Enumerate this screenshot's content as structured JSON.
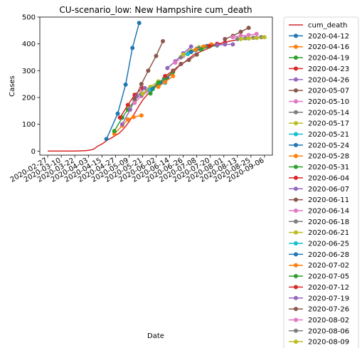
{
  "chart_data": {
    "type": "line",
    "title": "CU-scenario_low: New Hampshire cum_death",
    "xlabel": "Date",
    "ylabel": "Cases",
    "ylim": [
      -15,
      500
    ],
    "xlim": [
      "2020-02-20",
      "2020-09-13"
    ],
    "yticks": [
      0,
      100,
      200,
      300,
      400,
      500
    ],
    "xticks": [
      "2020-02-27",
      "2020-03-10",
      "2020-03-22",
      "2020-04-03",
      "2020-04-15",
      "2020-04-27",
      "2020-05-09",
      "2020-05-21",
      "2020-06-02",
      "2020-06-14",
      "2020-06-26",
      "2020-07-08",
      "2020-07-20",
      "2020-08-01",
      "2020-08-13",
      "2020-08-25",
      "2020-09-06"
    ],
    "grid": false,
    "legend_position": "outside-right",
    "observed": {
      "name": "cum_death",
      "color": "#d62728",
      "x": [
        "2020-02-27",
        "2020-03-10",
        "2020-03-22",
        "2020-03-27",
        "2020-04-01",
        "2020-04-05",
        "2020-04-08",
        "2020-04-11",
        "2020-04-14",
        "2020-04-17",
        "2020-04-20",
        "2020-04-23",
        "2020-04-26",
        "2020-04-30",
        "2020-05-03",
        "2020-05-06",
        "2020-05-09",
        "2020-05-12",
        "2020-05-15",
        "2020-05-18",
        "2020-05-21",
        "2020-05-24",
        "2020-05-27",
        "2020-05-30",
        "2020-06-03",
        "2020-06-06",
        "2020-06-10",
        "2020-06-14",
        "2020-06-18",
        "2020-06-22",
        "2020-06-26",
        "2020-07-01",
        "2020-07-06",
        "2020-07-12",
        "2020-07-18",
        "2020-07-24",
        "2020-07-30",
        "2020-08-06",
        "2020-08-13",
        "2020-08-20",
        "2020-08-27",
        "2020-09-04"
      ],
      "y": [
        0,
        0,
        0,
        1,
        2,
        4,
        8,
        18,
        24,
        32,
        42,
        48,
        56,
        66,
        78,
        92,
        110,
        128,
        148,
        170,
        190,
        205,
        218,
        232,
        252,
        262,
        272,
        282,
        298,
        316,
        328,
        345,
        362,
        372,
        383,
        395,
        402,
        410,
        415,
        418,
        422,
        426
      ]
    },
    "series": [
      {
        "name": "2020-04-12",
        "color": "#1f77b4",
        "x": [
          "2020-04-19",
          "2020-04-29",
          "2020-05-06",
          "2020-05-12",
          "2020-05-18"
        ],
        "y": [
          45,
          140,
          248,
          385,
          478
        ]
      },
      {
        "name": "2020-04-16",
        "color": "#ff7f0e",
        "x": [
          "2020-04-26",
          "2020-05-03",
          "2020-05-08",
          "2020-05-13",
          "2020-05-20"
        ],
        "y": [
          65,
          95,
          118,
          127,
          133
        ]
      },
      {
        "name": "2020-04-19",
        "color": "#2ca02c",
        "x": [
          "2020-04-26",
          "2020-05-03",
          "2020-05-08",
          "2020-05-14"
        ],
        "y": [
          75,
          125,
          155,
          190
        ]
      },
      {
        "name": "2020-04-23",
        "color": "#d62728",
        "x": [
          "2020-05-01",
          "2020-05-08",
          "2020-05-14",
          "2020-05-21"
        ],
        "y": [
          125,
          172,
          210,
          235
        ]
      },
      {
        "name": "2020-04-26",
        "color": "#9467bd",
        "x": [
          "2020-05-03",
          "2020-05-10",
          "2020-05-16",
          "2020-05-23"
        ],
        "y": [
          100,
          155,
          205,
          235
        ]
      },
      {
        "name": "2020-05-07",
        "color": "#8c564b",
        "x": [
          "2020-05-14",
          "2020-05-20",
          "2020-05-26",
          "2020-06-02",
          "2020-06-08"
        ],
        "y": [
          195,
          250,
          300,
          355,
          410
        ]
      },
      {
        "name": "2020-05-10",
        "color": "#e377c2",
        "x": [
          "2020-05-14",
          "2020-05-20",
          "2020-05-27"
        ],
        "y": [
          180,
          205,
          225
        ]
      },
      {
        "name": "2020-05-14",
        "color": "#7f7f7f",
        "x": [
          "2020-05-20",
          "2020-05-27",
          "2020-06-03",
          "2020-06-09"
        ],
        "y": [
          210,
          232,
          250,
          270
        ]
      },
      {
        "name": "2020-05-17",
        "color": "#bcbd22",
        "x": [
          "2020-05-21",
          "2020-05-28",
          "2020-06-04"
        ],
        "y": [
          215,
          240,
          260
        ]
      },
      {
        "name": "2020-05-21",
        "color": "#17becf",
        "x": [
          "2020-05-28",
          "2020-06-04",
          "2020-06-10"
        ],
        "y": [
          230,
          245,
          255
        ]
      },
      {
        "name": "2020-05-24",
        "color": "#1f77b4",
        "x": [
          "2020-05-30",
          "2020-06-06",
          "2020-06-12"
        ],
        "y": [
          232,
          255,
          272
        ]
      },
      {
        "name": "2020-05-28",
        "color": "#ff7f0e",
        "x": [
          "2020-06-04",
          "2020-06-10",
          "2020-06-17"
        ],
        "y": [
          240,
          258,
          280
        ]
      },
      {
        "name": "2020-05-31",
        "color": "#2ca02c",
        "x": [
          "2020-05-28",
          "2020-06-04",
          "2020-06-10",
          "2020-06-17"
        ],
        "y": [
          215,
          255,
          272,
          295
        ]
      },
      {
        "name": "2020-06-04",
        "color": "#d62728",
        "x": [
          "2020-06-10",
          "2020-06-17",
          "2020-06-24"
        ],
        "y": [
          280,
          300,
          325
        ]
      },
      {
        "name": "2020-06-07",
        "color": "#9467bd",
        "x": [
          "2020-06-12",
          "2020-06-19",
          "2020-06-26",
          "2020-07-03"
        ],
        "y": [
          310,
          335,
          365,
          390
        ]
      },
      {
        "name": "2020-06-11",
        "color": "#8c564b",
        "x": [
          "2020-06-17",
          "2020-06-24",
          "2020-07-01",
          "2020-07-08"
        ],
        "y": [
          300,
          325,
          340,
          360
        ]
      },
      {
        "name": "2020-06-14",
        "color": "#e377c2",
        "x": [
          "2020-06-19",
          "2020-06-26",
          "2020-07-02"
        ],
        "y": [
          330,
          355,
          372
        ]
      },
      {
        "name": "2020-06-18",
        "color": "#7f7f7f",
        "x": [
          "2020-06-24",
          "2020-07-01",
          "2020-07-08"
        ],
        "y": [
          350,
          368,
          382
        ]
      },
      {
        "name": "2020-06-21",
        "color": "#bcbd22",
        "x": [
          "2020-06-26",
          "2020-07-03",
          "2020-07-10"
        ],
        "y": [
          360,
          375,
          388
        ]
      },
      {
        "name": "2020-06-25",
        "color": "#17becf",
        "x": [
          "2020-06-30",
          "2020-07-07",
          "2020-07-14"
        ],
        "y": [
          362,
          376,
          390
        ]
      },
      {
        "name": "2020-06-28",
        "color": "#1f77b4",
        "x": [
          "2020-07-03",
          "2020-07-10",
          "2020-07-17"
        ],
        "y": [
          370,
          382,
          392
        ]
      },
      {
        "name": "2020-07-02",
        "color": "#ff7f0e",
        "x": [
          "2020-07-07",
          "2020-07-14",
          "2020-07-21"
        ],
        "y": [
          378,
          390,
          398
        ]
      },
      {
        "name": "2020-07-05",
        "color": "#2ca02c",
        "x": [
          "2020-07-12",
          "2020-07-19",
          "2020-07-26"
        ],
        "y": [
          380,
          390,
          394
        ]
      },
      {
        "name": "2020-07-12",
        "color": "#d62728",
        "x": [
          "2020-07-19",
          "2020-07-26",
          "2020-08-02"
        ],
        "y": [
          392,
          400,
          405
        ]
      },
      {
        "name": "2020-07-19",
        "color": "#9467bd",
        "x": [
          "2020-07-26",
          "2020-08-02",
          "2020-08-09"
        ],
        "y": [
          395,
          398,
          398
        ]
      },
      {
        "name": "2020-07-26",
        "color": "#8c564b",
        "x": [
          "2020-08-02",
          "2020-08-09",
          "2020-08-16",
          "2020-08-23"
        ],
        "y": [
          418,
          430,
          445,
          460
        ]
      },
      {
        "name": "2020-08-02",
        "color": "#e377c2",
        "x": [
          "2020-08-09",
          "2020-08-16",
          "2020-08-23",
          "2020-08-30"
        ],
        "y": [
          425,
          430,
          433,
          437
        ]
      },
      {
        "name": "2020-08-06",
        "color": "#7f7f7f",
        "x": [
          "2020-08-13",
          "2020-08-20",
          "2020-08-27",
          "2020-09-03"
        ],
        "y": [
          418,
          421,
          423,
          425
        ]
      },
      {
        "name": "2020-08-09",
        "color": "#bcbd22",
        "x": [
          "2020-08-16",
          "2020-08-23",
          "2020-08-30",
          "2020-09-06"
        ],
        "y": [
          418,
          420,
          422,
          425
        ]
      }
    ]
  }
}
